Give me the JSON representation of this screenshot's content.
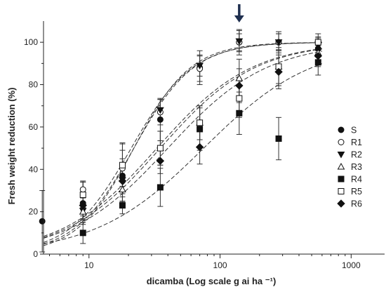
{
  "chart_data": {
    "type": "scatter",
    "title": "",
    "xlabel": "dicamba (Log scale g ai ha ⁻¹)",
    "ylabel": "Fresh weight reduction (%)",
    "xscale": "log",
    "xlim": [
      4.5,
      1800
    ],
    "ylim": [
      0,
      110
    ],
    "x_ticks": [
      10,
      100,
      1000
    ],
    "x_tick_labels": [
      "10",
      "100",
      "1000"
    ],
    "y_ticks": [
      0,
      20,
      40,
      60,
      80,
      100
    ],
    "y_tick_labels": [
      "0",
      "20",
      "40",
      "60",
      "80",
      "100"
    ],
    "grid": false,
    "legend_position": "right",
    "annotation": "down-arrow-marker at x = 140",
    "arrow_x": 140,
    "series": [
      {
        "name": "S",
        "marker": "filled-circle",
        "x": [
          4.4,
          9,
          18,
          35,
          70,
          140,
          280,
          560
        ],
        "y": [
          15.5,
          24,
          37,
          63.5,
          88,
          100,
          100,
          97
        ],
        "err": [
          14.5,
          10,
          12,
          10,
          8,
          6,
          5,
          4
        ],
        "fit": {
          "ed50": 22,
          "slope": 1.9
        }
      },
      {
        "name": "R1",
        "marker": "open-circle",
        "x": [
          9,
          18,
          35,
          70,
          140,
          280,
          560
        ],
        "y": [
          30.5,
          40.5,
          67,
          87.5,
          100,
          100,
          99.5
        ],
        "err": [
          4,
          12,
          6,
          6,
          4,
          4,
          3
        ],
        "fit": {
          "ed50": 21,
          "slope": 1.85
        }
      },
      {
        "name": "R2",
        "marker": "filled-triangle-down",
        "x": [
          9,
          18,
          35,
          70,
          140,
          280,
          560
        ],
        "y": [
          20.5,
          35,
          68,
          89,
          100.5,
          100,
          99
        ],
        "err": [
          4,
          10,
          5,
          5,
          5,
          4,
          3
        ],
        "fit": {
          "ed50": 22,
          "slope": 2.0
        }
      },
      {
        "name": "R3",
        "marker": "open-triangle-up",
        "x": [
          9,
          18,
          35,
          70,
          140,
          280,
          560
        ],
        "y": [
          20,
          30.5,
          50,
          62,
          83,
          88.5,
          95
        ],
        "err": [
          4,
          6,
          8,
          8,
          9,
          8,
          5
        ],
        "fit": {
          "ed50": 35,
          "slope": 1.2
        }
      },
      {
        "name": "R4",
        "marker": "filled-square",
        "x": [
          9,
          18,
          35,
          70,
          140,
          280,
          560
        ],
        "y": [
          10,
          23,
          31.5,
          59,
          66.5,
          54.5,
          90.5
        ],
        "err": [
          5,
          4,
          9,
          10,
          10,
          10,
          6
        ],
        "fit": {
          "ed50": 75,
          "slope": 1.05
        }
      },
      {
        "name": "R5",
        "marker": "open-square",
        "x": [
          9,
          18,
          35,
          70,
          140,
          280,
          560
        ],
        "y": [
          28,
          42,
          50,
          62,
          73.5,
          88.5,
          100
        ],
        "err": [
          6,
          10,
          8,
          8,
          9,
          9,
          4
        ],
        "fit": {
          "ed50": 33,
          "slope": 1.2
        }
      },
      {
        "name": "R6",
        "marker": "filled-diamond",
        "x": [
          9,
          18,
          35,
          70,
          140,
          280,
          560
        ],
        "y": [
          23,
          34.5,
          44,
          50.5,
          79.5,
          86,
          93.5
        ],
        "err": [
          5,
          6,
          6,
          8,
          8,
          8,
          5
        ],
        "fit": {
          "ed50": 40,
          "slope": 1.15
        }
      }
    ]
  }
}
